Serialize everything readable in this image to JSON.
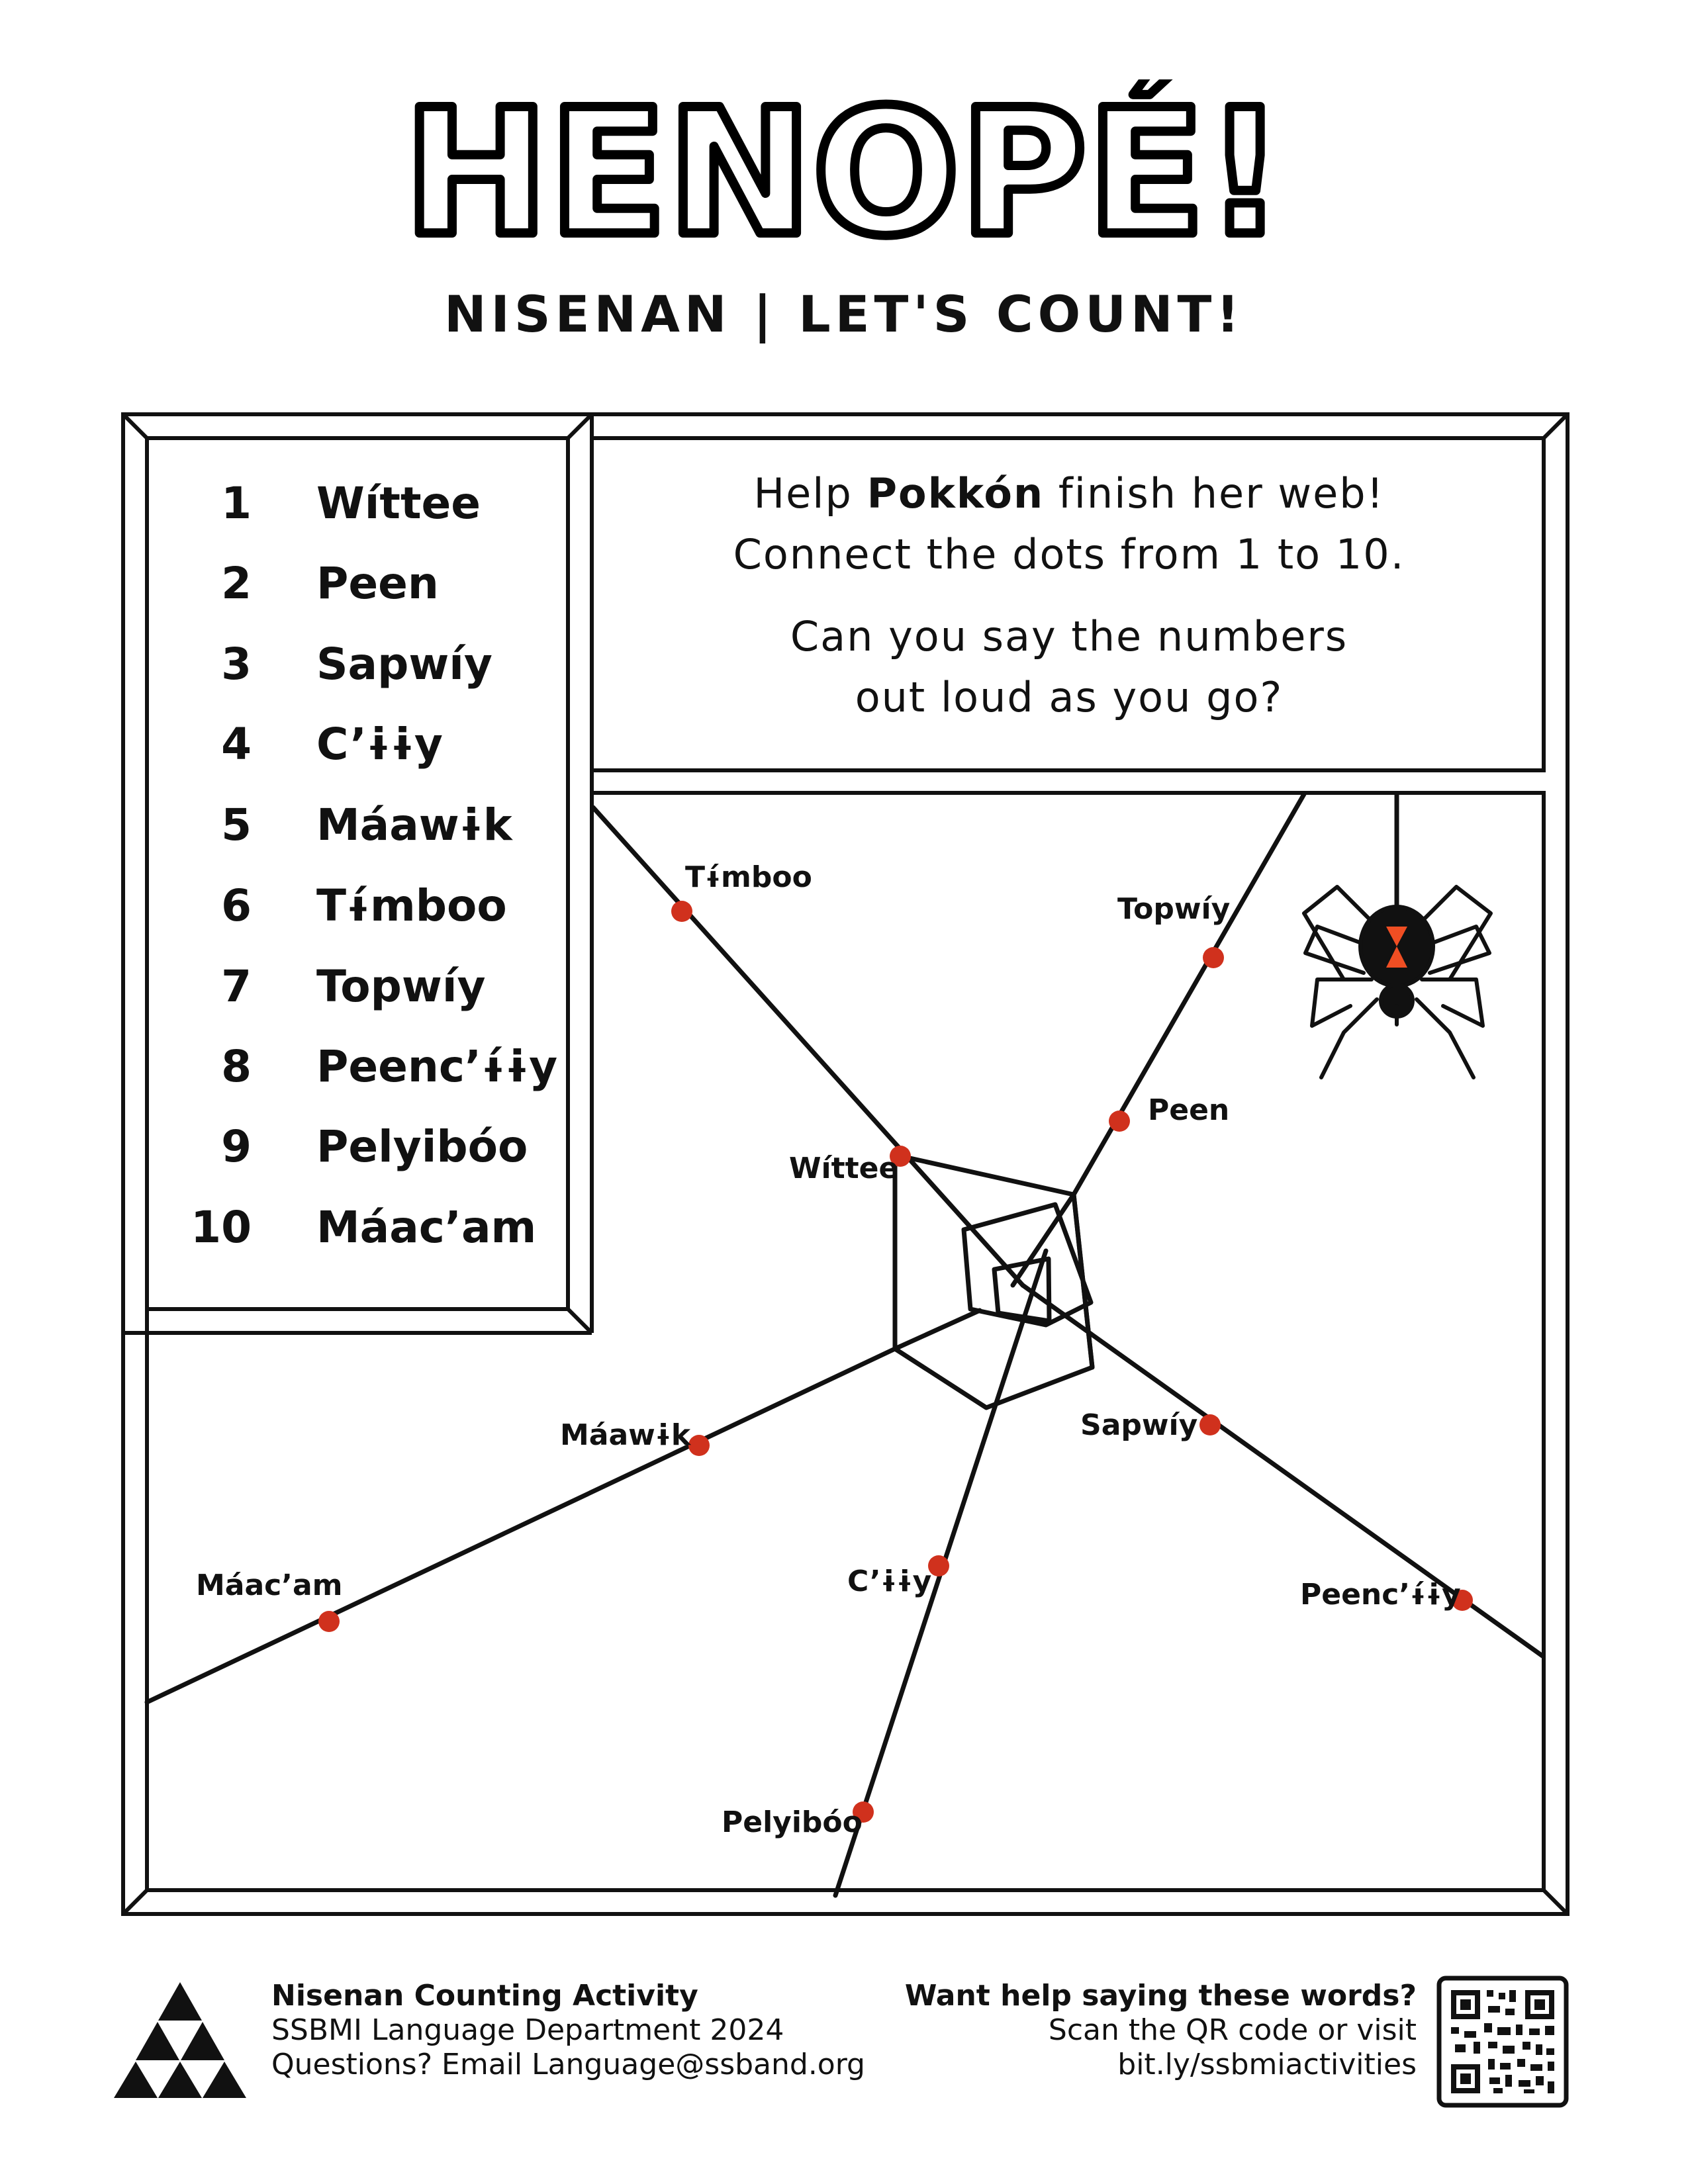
{
  "header": {
    "title": "HENOPÉ!",
    "subtitle": "NISENAN | LET'S COUNT!"
  },
  "numbers": [
    {
      "n": "1",
      "word": "Wíttee"
    },
    {
      "n": "2",
      "word": "Peen"
    },
    {
      "n": "3",
      "word": "Sapwíy"
    },
    {
      "n": "4",
      "word": "C’ɨɨy"
    },
    {
      "n": "5",
      "word": "Máawɨk"
    },
    {
      "n": "6",
      "word": "Tɨ́mboo"
    },
    {
      "n": "7",
      "word": "Topwíy"
    },
    {
      "n": "8",
      "word": "Peenc’ɨ́ɨy"
    },
    {
      "n": "9",
      "word": "Pelyibóo"
    },
    {
      "n": "10",
      "word": "Máac’am"
    }
  ],
  "instructions": {
    "line1_pre": "Help ",
    "line1_bold": "Pokkón",
    "line1_post": " finish her web!",
    "line2": "Connect the dots from 1 to 10.",
    "line3": "Can you say the numbers",
    "line4": "out loud as you go?"
  },
  "web_labels": {
    "timboo": "Tɨ́mboo",
    "topwiy": "Topwíy",
    "peen": "Peen",
    "wittee": "Wíttee",
    "maawik": "Máawɨk",
    "sapwiy": "Sapwíy",
    "maacam": "Máac’am",
    "ciiy": "C’ɨɨy",
    "peenciiy": "Peenc’ɨ́ɨy",
    "pelyiboo": "Pelyibóo"
  },
  "colors": {
    "dot": "#d0311d",
    "spider_mark": "#f04e23",
    "ink": "#111111"
  },
  "footer": {
    "left_title": "Nisenan Counting Activity",
    "left_line2": "SSBMI Language Department 2024",
    "left_line3": "Questions? Email Language@ssband.org",
    "right_title": "Want help saying these words?",
    "right_line2": "Scan the QR code or visit",
    "right_line3": "bit.ly/ssbmiactivities"
  },
  "icons": {
    "logo": "triangle-logo-icon",
    "qr": "qr-code-icon",
    "spider": "spider-icon"
  }
}
